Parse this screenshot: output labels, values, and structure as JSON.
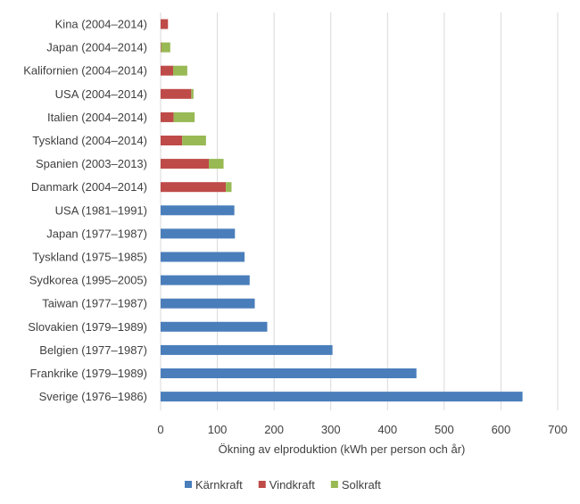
{
  "chart_data": {
    "type": "bar",
    "orientation": "horizontal",
    "stacked": true,
    "categories": [
      "Kina (2004–2014)",
      "Japan (2004–2014)",
      "Kalifornien (2004–2014)",
      "USA (2004–2014)",
      "Italien (2004–2014)",
      "Tyskland (2004–2014)",
      "Spanien (2003–2013)",
      "Danmark (2004–2014)",
      "USA (1981–1991)",
      "Japan (1977–1987)",
      "Tyskland (1975–1985)",
      "Sydkorea (1995–2005)",
      "Taiwan (1977–1987)",
      "Slovakien (1979–1989)",
      "Belgien (1977–1987)",
      "Frankrike  (1979–1989)",
      "Sverige (1976–1986)"
    ],
    "series": [
      {
        "name": "Kärnkraft",
        "color": "#4a7ebb",
        "values": [
          0,
          0,
          0,
          0,
          0,
          0,
          0,
          0,
          130,
          131,
          148,
          157,
          166,
          188,
          303,
          451,
          638
        ]
      },
      {
        "name": "Vindkraft",
        "color": "#be4b48",
        "values": [
          13,
          1,
          22,
          54,
          23,
          38,
          85,
          115,
          0,
          0,
          0,
          0,
          0,
          0,
          0,
          0,
          0
        ]
      },
      {
        "name": "Solkraft",
        "color": "#98b954",
        "values": [
          0,
          16,
          25,
          4,
          37,
          42,
          26,
          10,
          0,
          0,
          0,
          0,
          0,
          0,
          0,
          0,
          0
        ]
      }
    ],
    "xlabel": "Ökning av elproduktion  (kWh per person och år)",
    "xlim": [
      0,
      700
    ],
    "xticks": [
      0,
      100,
      200,
      300,
      400,
      500,
      600,
      700
    ],
    "grid": true,
    "legend_position": "bottom"
  }
}
